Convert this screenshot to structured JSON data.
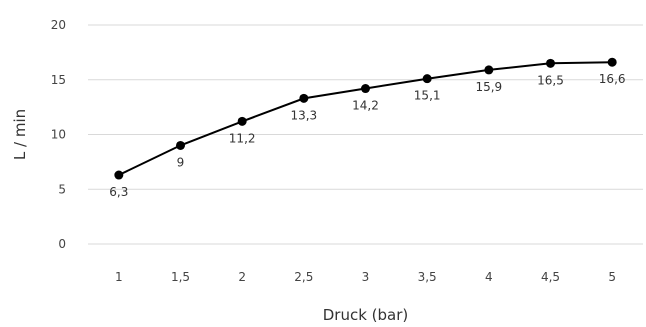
{
  "chart_data": {
    "type": "line",
    "title": "",
    "xlabel": "Druck (bar)",
    "ylabel": "L / min",
    "categories": [
      "1",
      "1,5",
      "2",
      "2,5",
      "3",
      "3,5",
      "4",
      "4,5",
      "5"
    ],
    "series": [
      {
        "values": [
          6.3,
          9,
          11.2,
          13.3,
          14.2,
          15.1,
          15.9,
          16.5,
          16.6
        ],
        "data_labels": [
          "6,3",
          "9",
          "11,2",
          "13,3",
          "14,2",
          "15,1",
          "15,9",
          "16,5",
          "16,6"
        ],
        "color": "#000000"
      }
    ],
    "y_ticks": [
      "0",
      "5",
      "10",
      "15",
      "20"
    ],
    "ylim": [
      0,
      20
    ],
    "grid": true,
    "legend": "none"
  }
}
